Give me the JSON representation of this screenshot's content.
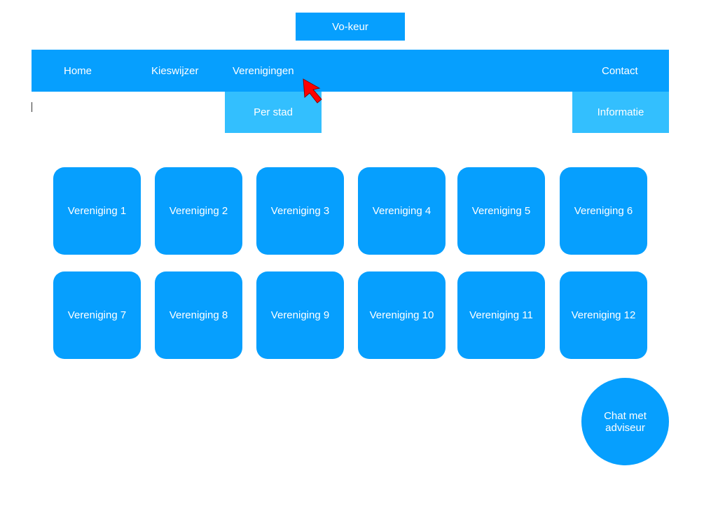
{
  "header": {
    "logo_label": "Vo-keur"
  },
  "nav": {
    "items": [
      {
        "label": "Home"
      },
      {
        "label": "Kieswijzer"
      },
      {
        "label": "Verenigingen"
      },
      {
        "label": "Contact"
      }
    ],
    "dropdowns": {
      "verenigingen": {
        "label": "Per stad"
      },
      "contact": {
        "label": "Informatie"
      }
    }
  },
  "tiles": [
    {
      "label": "Vereniging 1"
    },
    {
      "label": "Vereniging 2"
    },
    {
      "label": "Vereniging 3"
    },
    {
      "label": "Vereniging 4"
    },
    {
      "label": "Vereniging 5"
    },
    {
      "label": "Vereniging 6"
    },
    {
      "label": "Vereniging 7"
    },
    {
      "label": "Vereniging 8"
    },
    {
      "label": "Vereniging 9"
    },
    {
      "label": "Vereniging 10"
    },
    {
      "label": "Vereniging 11"
    },
    {
      "label": "Vereniging 12"
    }
  ],
  "chat": {
    "line1": "Chat met",
    "line2": "adviseur"
  },
  "colors": {
    "primary": "#069ffe",
    "dropdown": "#33bffe",
    "cursor": "#ff0000"
  }
}
